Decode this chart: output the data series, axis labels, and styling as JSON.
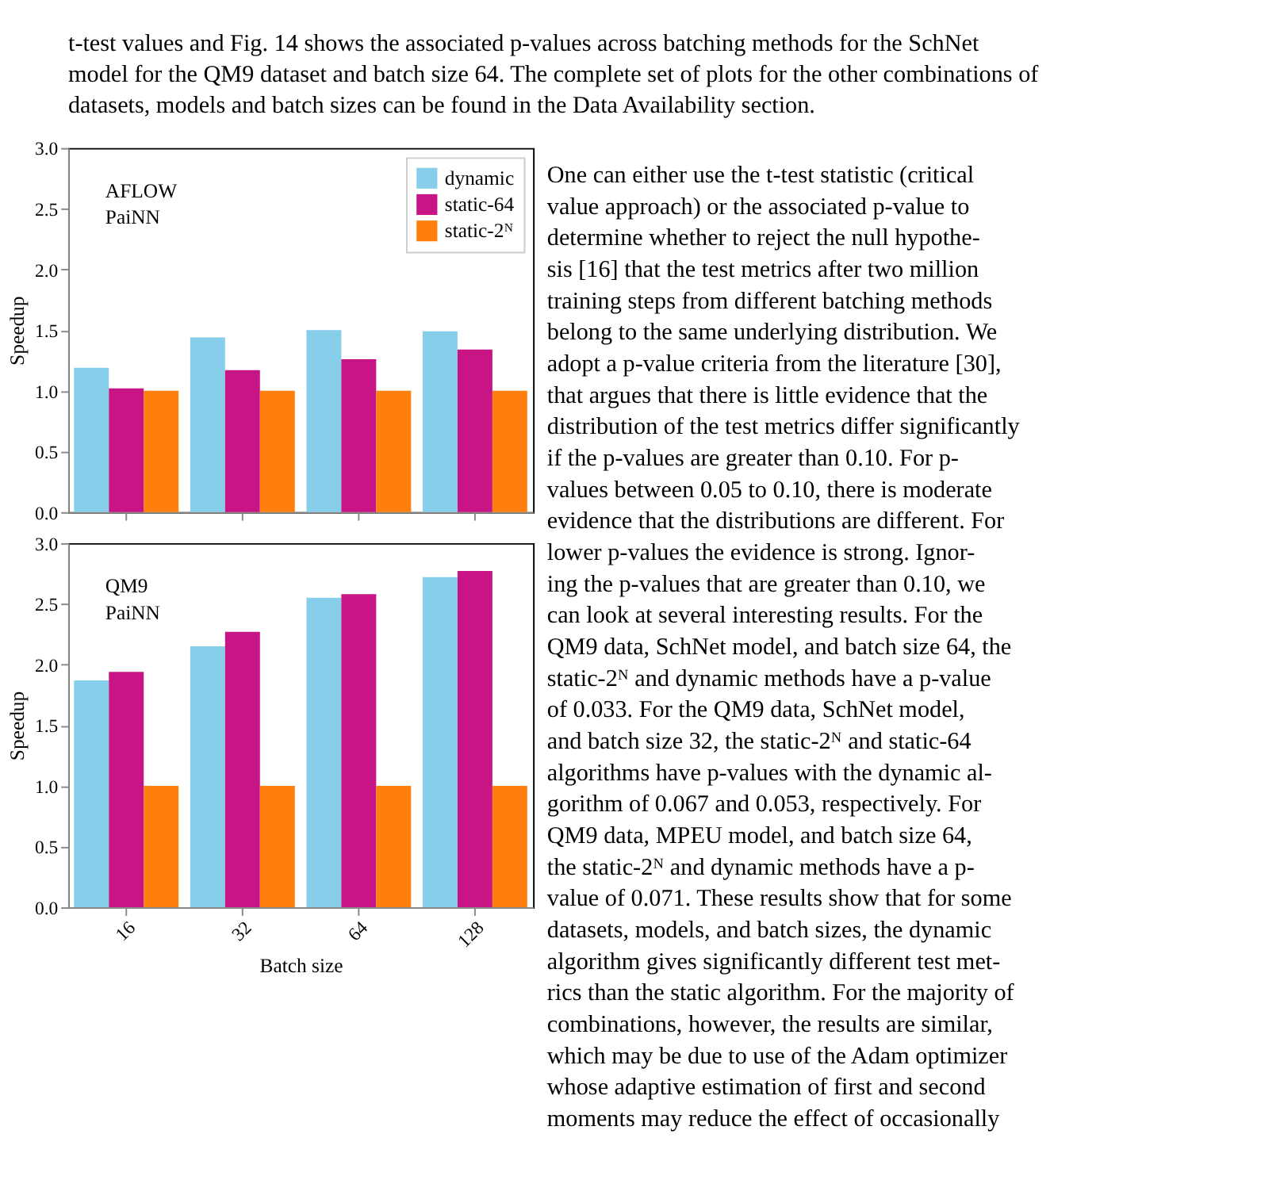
{
  "chart_data": [
    {
      "type": "other",
      "annotations": [
        "t-test values and Fig. 14 shows the associated p-values across batching methods for the SchNet",
        "model for the QM9 dataset and batch size 64. The complete set of plots for the other combinations of",
        "datasets, models and batch sizes can be found in the Data Availability section."
      ]
    },
    {
      "type": "bar",
      "ylabel": "Speedup",
      "categories": [
        "16",
        "32",
        "64",
        "128"
      ],
      "ylim": [
        0,
        3
      ],
      "yticks": [
        {
          "value": 0,
          "label": "0.0"
        },
        {
          "value": 0.5,
          "label": "0.5"
        },
        {
          "value": 1,
          "label": "1.0"
        },
        {
          "value": 1.5,
          "label": "1.5"
        },
        {
          "value": 2,
          "label": "2.0"
        },
        {
          "value": 2.5,
          "label": "2.5"
        },
        {
          "value": 3,
          "label": "3.0"
        }
      ],
      "tick_labels": "y",
      "grid": false,
      "legend": "top right",
      "annotations": [
        "AFLOW",
        "PaiNN"
      ],
      "series": [
        {
          "name": "dynamic",
          "color": "#87ceeb",
          "values": [
            1.19,
            1.44,
            1.5,
            1.49
          ]
        },
        {
          "name": "static-64",
          "color": "#c71585",
          "values": [
            1.02,
            1.17,
            1.26,
            1.34
          ]
        },
        {
          "name": "static-2ᴺ",
          "color": "#ff7f0e",
          "values": [
            1.0,
            1.0,
            1.0,
            1.0
          ]
        }
      ]
    },
    {
      "type": "bar",
      "ylabel": "Speedup",
      "xlabel": "Batch size",
      "categories": [
        "16",
        "32",
        "64",
        "128"
      ],
      "ylim": [
        0,
        3
      ],
      "yticks": [
        {
          "value": 0,
          "label": "0.0"
        },
        {
          "value": 0.5,
          "label": "0.5"
        },
        {
          "value": 1,
          "label": "1.0"
        },
        {
          "value": 1.5,
          "label": "1.5"
        },
        {
          "value": 2,
          "label": "2.0"
        },
        {
          "value": 2.5,
          "label": "2.5"
        },
        {
          "value": 3,
          "label": "3.0"
        }
      ],
      "grid": false,
      "annotations": [
        "QM9",
        "PaiNN"
      ],
      "series": [
        {
          "color": "#87ceeb",
          "values": [
            1.87,
            2.15,
            2.55,
            2.72
          ]
        },
        {
          "color": "#c71585",
          "values": [
            1.94,
            2.27,
            2.58,
            2.77
          ]
        },
        {
          "color": "#ff7f0e",
          "values": [
            1.0,
            1.0,
            1.0,
            1.0
          ]
        }
      ]
    },
    {
      "type": "other",
      "annotations": [
        "One can either use the t-test statistic (critical",
        "value approach) or the associated p-value to",
        "determine whether to reject the null hypothe-",
        "sis [16] that the test metrics after two million",
        "training steps from different batching methods",
        "belong to the same underlying distribution. We",
        "adopt a p-value criteria from the literature [30],",
        "that argues that there is little evidence that the",
        "distribution of the test metrics differ significantly",
        "if the p-values are greater than 0.10.  For p-",
        "values between 0.05 to 0.10, there is moderate",
        "evidence that the distributions are different. For",
        "lower p-values the evidence is strong.  Ignor-",
        "ing the p-values that are greater than 0.10, we",
        "can look at several interesting results.  For the",
        "QM9 data, SchNet model, and batch size 64, the",
        "static-2ᴺ and dynamic methods have a p-value",
        "of 0.033.  For the QM9 data, SchNet model,",
        "and batch size 32, the static-2ᴺ and static-64",
        "algorithms have p-values with the dynamic al-",
        "gorithm of 0.067 and 0.053, respectively.  For",
        "QM9 data, MPEU model, and batch size 64,",
        "the static-2ᴺ and dynamic methods have a p-",
        "value of 0.071. These results show that for some",
        "datasets, models, and batch sizes, the dynamic",
        "algorithm gives significantly different test met-",
        "rics than the static algorithm. For the majority of",
        "combinations, however, the results are similar,",
        "which may be due to use of the Adam optimizer",
        "whose adaptive estimation of first and second",
        "moments may reduce the effect of occasionally"
      ]
    }
  ]
}
